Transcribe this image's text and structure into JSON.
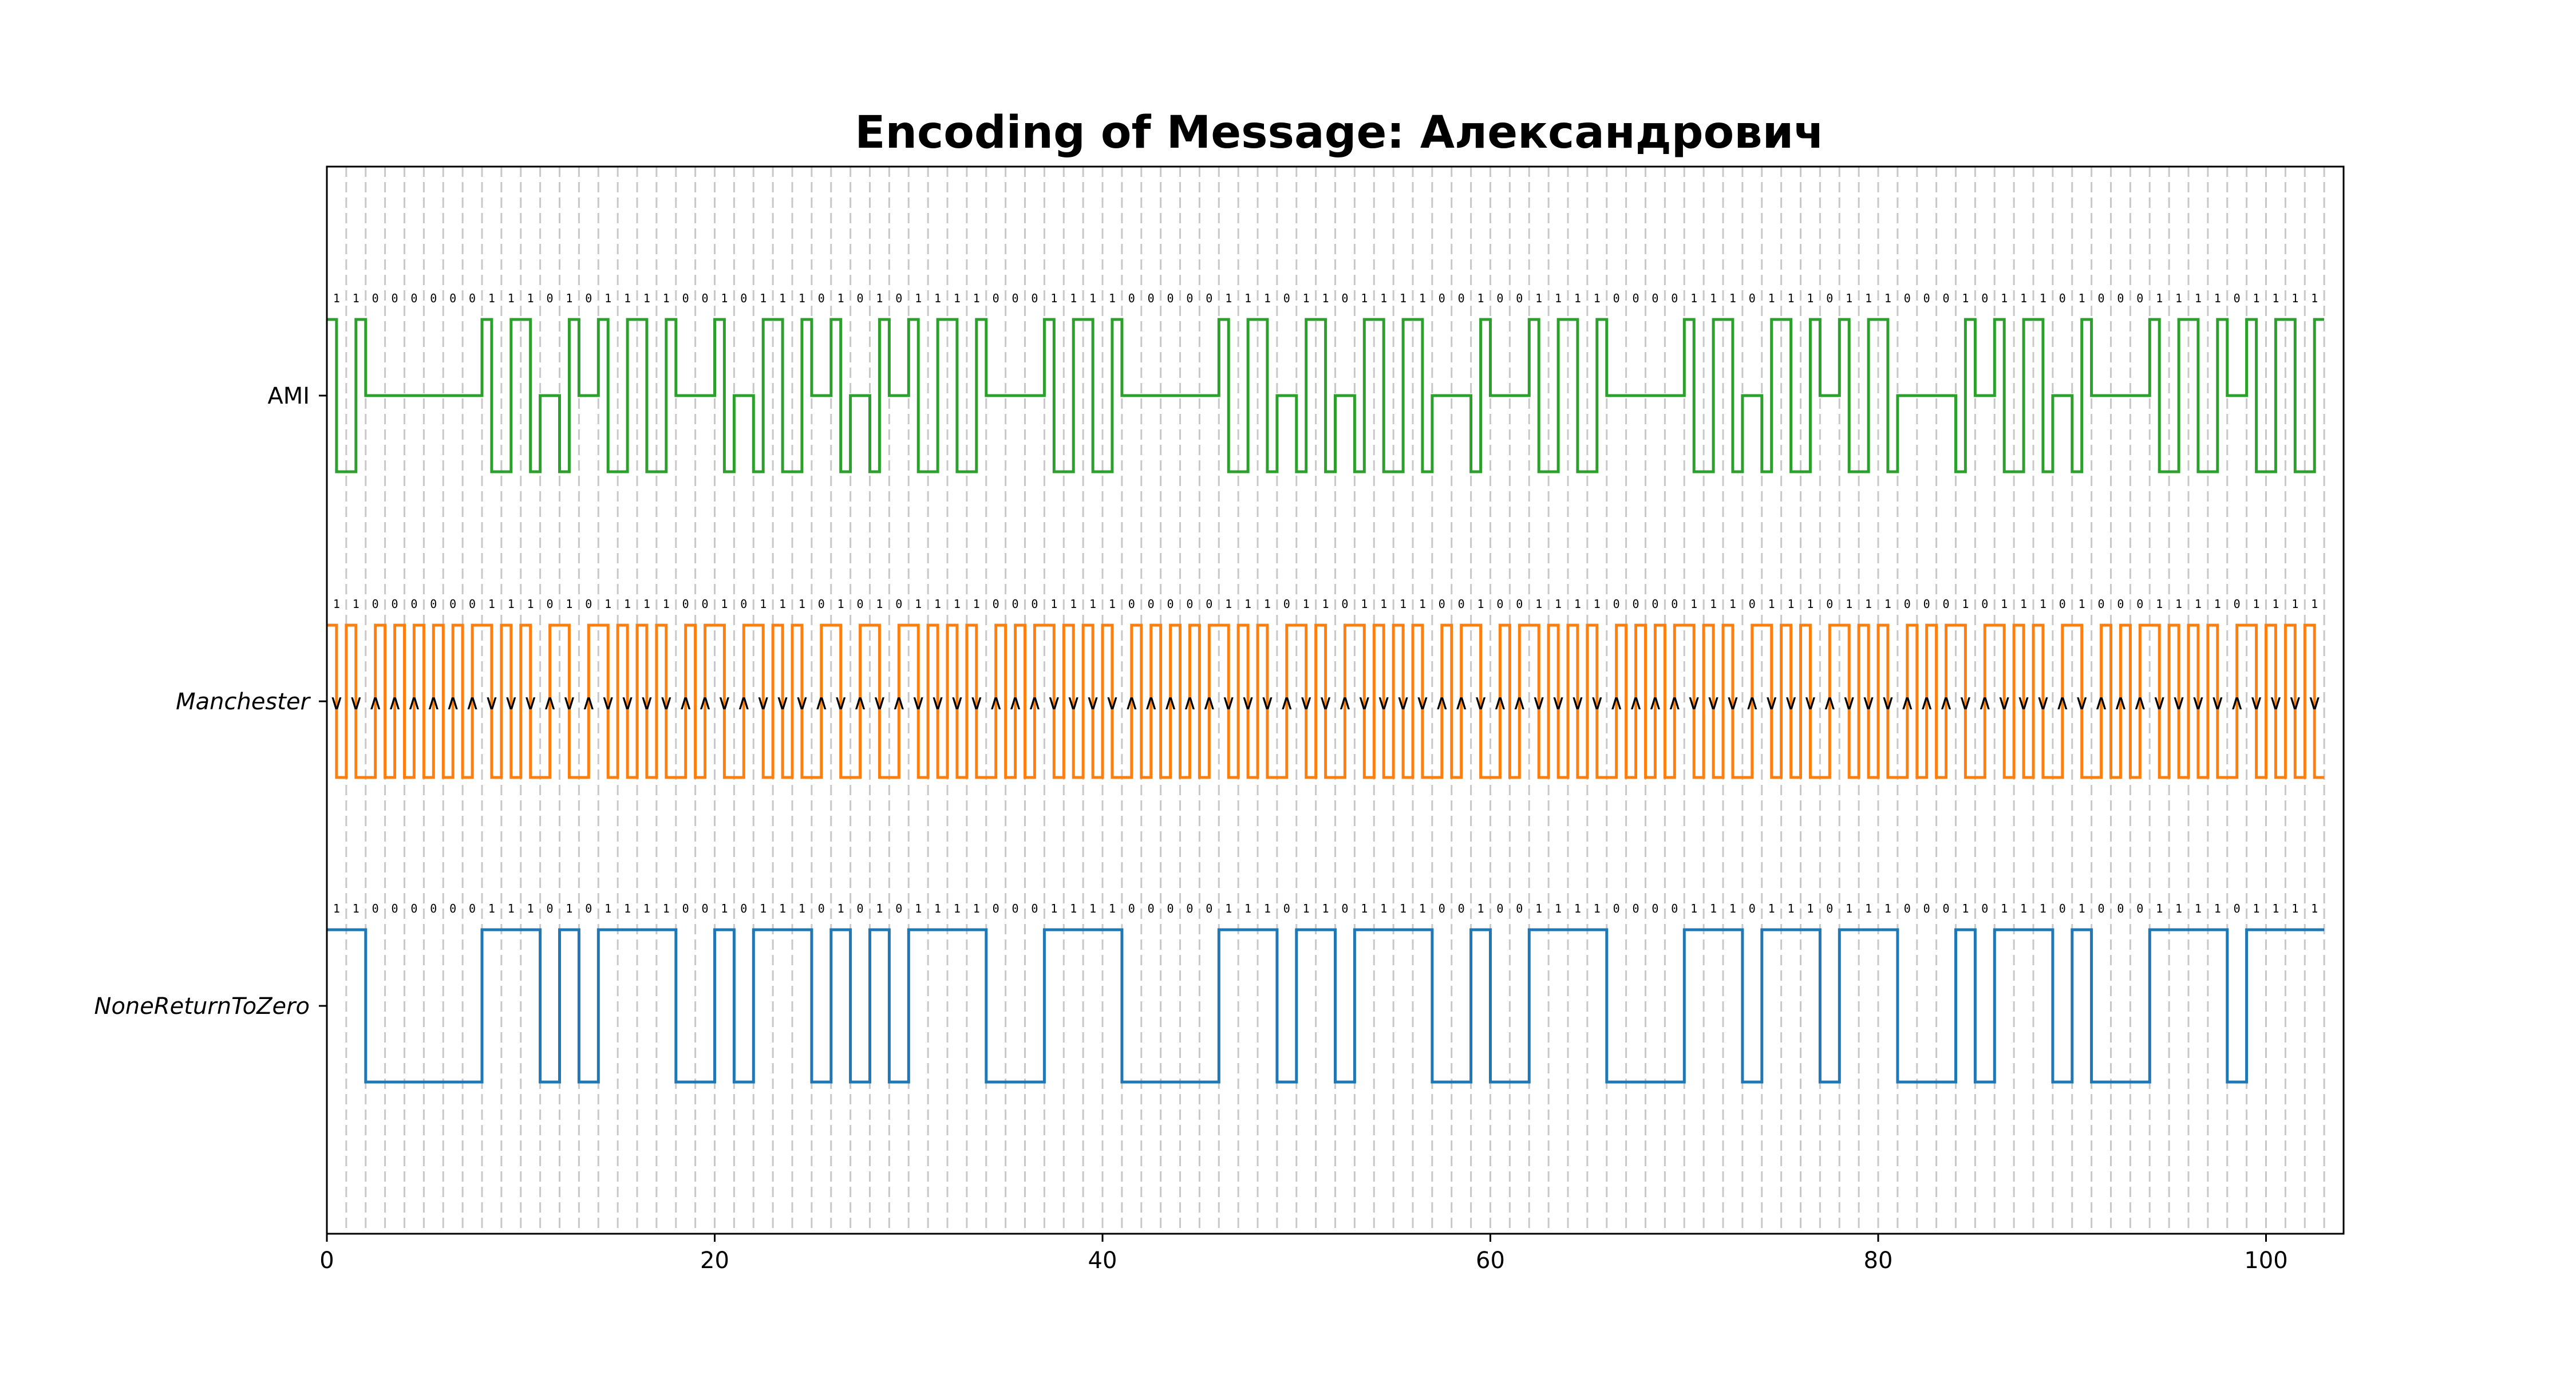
{
  "chart_data": {
    "type": "line",
    "title": "Encoding of Message: Александрович",
    "bits": "1100000011101011110010111010101111000111100000111011011110010011110000111011101110001011101000111101111",
    "xlim": [
      0,
      104
    ],
    "xticks": [
      0,
      20,
      40,
      60,
      80,
      100
    ],
    "grid": "vertical dashed lines at each bit boundary",
    "series": [
      {
        "name": "AMI",
        "color": "#2ca02c",
        "encoding": "AMI"
      },
      {
        "name": "Manchester",
        "color": "#ff7f0e",
        "encoding": "Manchester",
        "italic": true
      },
      {
        "name": "NoneReturnToZero",
        "color": "#1f77b4",
        "encoding": "NRZ",
        "italic": true
      }
    ]
  }
}
